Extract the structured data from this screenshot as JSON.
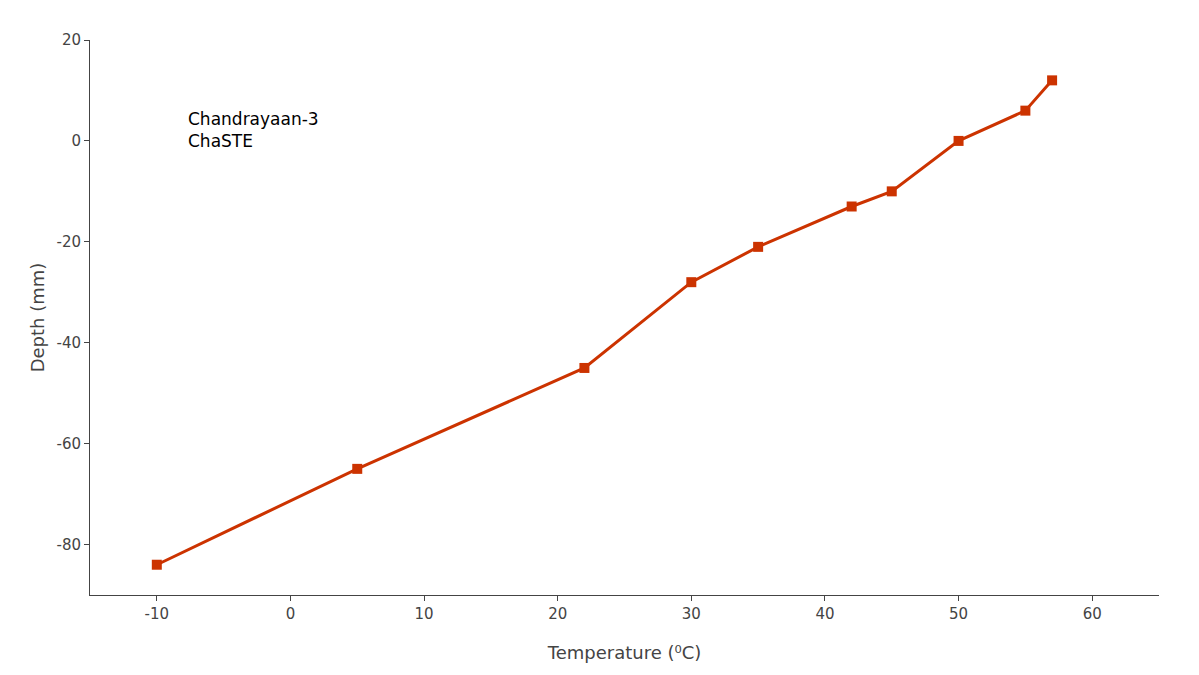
{
  "chart_data": {
    "type": "line",
    "x": [
      -10,
      5,
      22,
      30,
      35,
      42,
      45,
      50,
      55,
      57
    ],
    "values": [
      -84,
      -65,
      -45,
      -28,
      -21,
      -13,
      -10,
      0,
      6,
      12
    ],
    "color": "#CC3300",
    "marker": "square",
    "xlabel": "Temperature (⁰C)",
    "ylabel": "Depth (mm)",
    "annotation": "Chandrayaan-3\nChaSTE",
    "xlim": [
      -15,
      65
    ],
    "ylim": [
      -90,
      20
    ],
    "xticks": [
      -10,
      0,
      10,
      20,
      30,
      40,
      50,
      60
    ],
    "yticks": [
      20,
      0,
      -20,
      -40,
      -60,
      -80
    ],
    "grid": false
  }
}
